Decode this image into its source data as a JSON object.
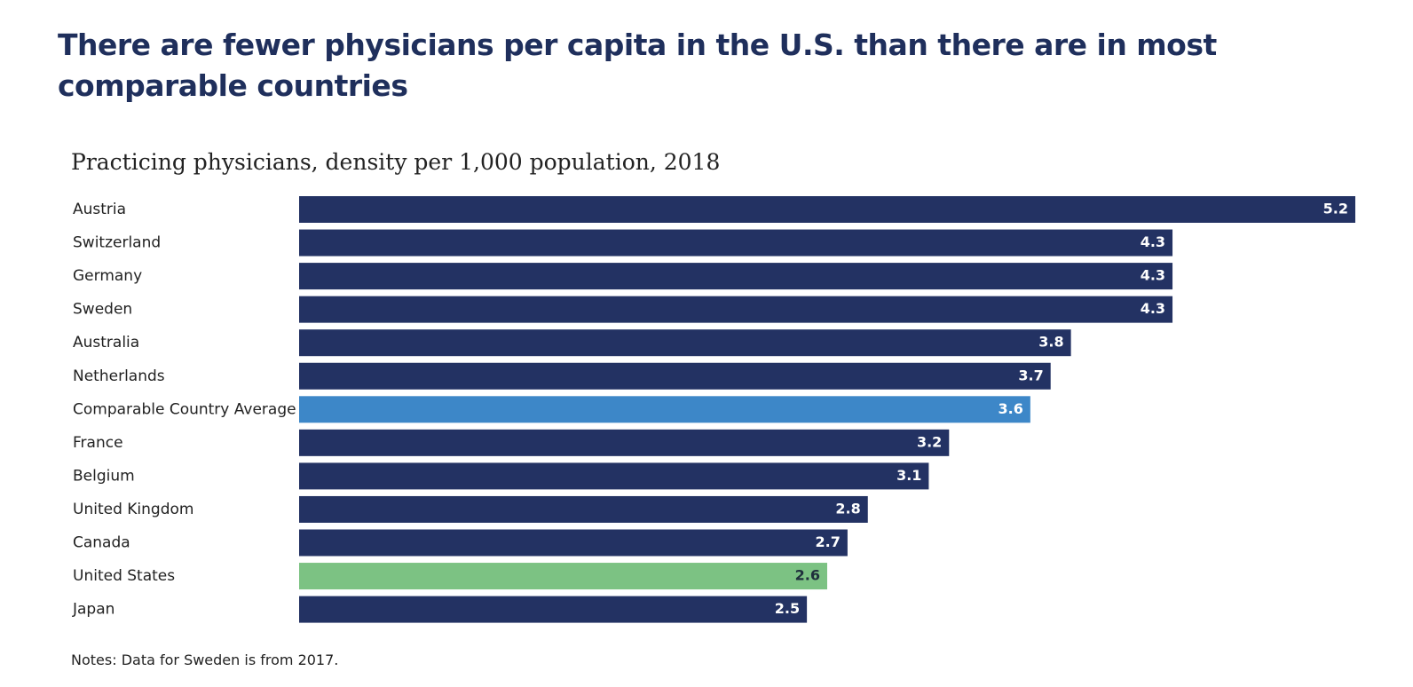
{
  "chart_data": {
    "type": "bar",
    "orientation": "horizontal",
    "title": "There are fewer physicians per capita in the U.S. than there are in most comparable countries",
    "subtitle": "Practicing physicians, density per 1,000 population, 2018",
    "categories": [
      "Austria",
      "Switzerland",
      "Germany",
      "Sweden",
      "Australia",
      "Netherlands",
      "Comparable Country Average",
      "France",
      "Belgium",
      "United Kingdom",
      "Canada",
      "United States",
      "Japan"
    ],
    "values": [
      5.2,
      4.3,
      4.3,
      4.3,
      3.8,
      3.7,
      3.6,
      3.2,
      3.1,
      2.8,
      2.7,
      2.6,
      2.5
    ],
    "colors": [
      "#233263",
      "#233263",
      "#233263",
      "#233263",
      "#233263",
      "#233263",
      "#3d87c8",
      "#233263",
      "#233263",
      "#233263",
      "#233263",
      "#7cc283",
      "#233263"
    ],
    "notes": "Notes: Data for Sweden is from 2017."
  }
}
